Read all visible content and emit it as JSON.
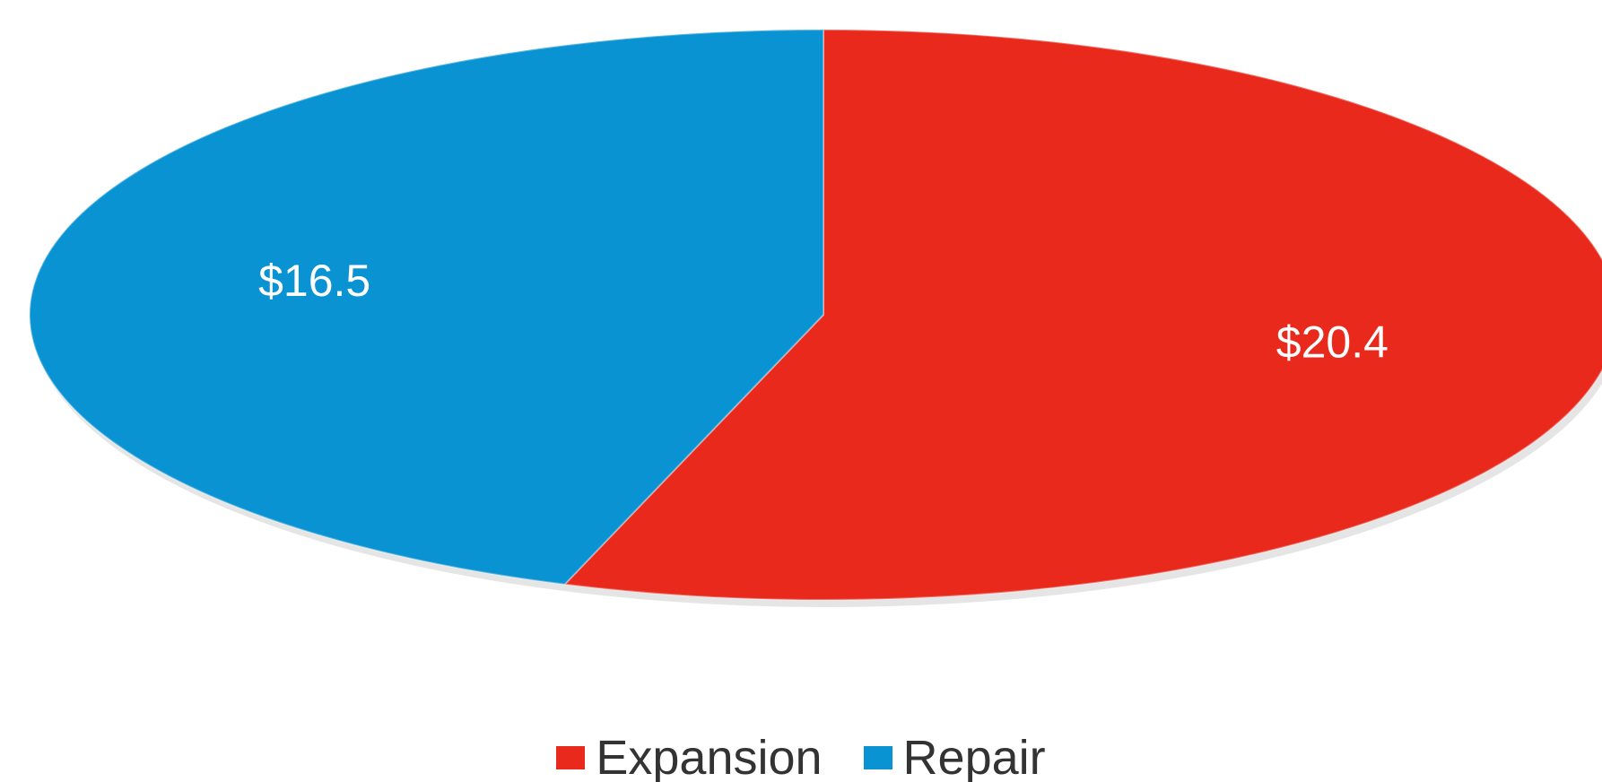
{
  "chart_data": {
    "type": "pie",
    "title": "",
    "slices": [
      {
        "name": "Expansion",
        "value": 20.4,
        "label": "$20.4",
        "color": "#e8291c"
      },
      {
        "name": "Repair",
        "value": 16.5,
        "label": "$16.5",
        "color": "#0a93d3"
      }
    ],
    "legend": {
      "placement": "bottom",
      "items": [
        {
          "name": "Expansion",
          "color": "#e8291c"
        },
        {
          "name": "Repair",
          "color": "#0a93d3"
        }
      ]
    }
  }
}
